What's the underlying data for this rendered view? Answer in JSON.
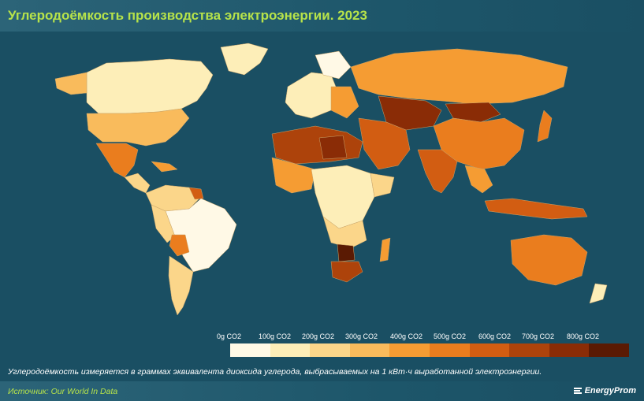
{
  "header": {
    "title": "Углеродоёмкость производства электроэнергии. 2023"
  },
  "legend": {
    "labels": [
      "0g CO2",
      "100g CO2",
      "200g CO2",
      "300g CO2",
      "400g CO2",
      "500g CO2",
      "600g CO2",
      "700g CO2",
      "800g CO2"
    ],
    "colors": [
      "#fff9e6",
      "#fdeeb8",
      "#fbd68a",
      "#f9bb5c",
      "#f59c33",
      "#ea7d1e",
      "#d25d12",
      "#ad430b",
      "#8a2c06",
      "#5a1a03"
    ]
  },
  "map": {
    "ocean_color": "#1a4f63",
    "regions": [
      {
        "name": "North America (Canada)",
        "color": "#fdeeb8"
      },
      {
        "name": "United States",
        "color": "#f9bb5c"
      },
      {
        "name": "Mexico",
        "color": "#ea7d1e"
      },
      {
        "name": "Greenland",
        "color": "#fdeeb8"
      },
      {
        "name": "Brazil",
        "color": "#fff9e6"
      },
      {
        "name": "Bolivia",
        "color": "#ea7d1e"
      },
      {
        "name": "Argentina",
        "color": "#fbd68a"
      },
      {
        "name": "Russia",
        "color": "#f59c33"
      },
      {
        "name": "Kazakhstan",
        "color": "#8a2c06"
      },
      {
        "name": "Mongolia",
        "color": "#8a2c06"
      },
      {
        "name": "China",
        "color": "#ea7d1e"
      },
      {
        "name": "India",
        "color": "#d25d12"
      },
      {
        "name": "Libya",
        "color": "#8a2c06"
      },
      {
        "name": "Egypt / Arabia",
        "color": "#ad430b"
      },
      {
        "name": "South Africa",
        "color": "#ad430b"
      },
      {
        "name": "Botswana",
        "color": "#5a1a03"
      },
      {
        "name": "Central Africa",
        "color": "#fdeeb8"
      },
      {
        "name": "Australia",
        "color": "#ea7d1e"
      },
      {
        "name": "Indonesia",
        "color": "#d25d12"
      },
      {
        "name": "Western Europe",
        "color": "#fdeeb8"
      },
      {
        "name": "Madagascar",
        "color": "#f59c33"
      }
    ]
  },
  "footnote": "Углеродоёмкость измеряется в граммах эквивалента диоксида углерода, выбрасываемых на 1 кВт·ч выработанной электроэнергии.",
  "footer": {
    "source": "Источник: Our World In Data",
    "brand": "EnergyProm"
  }
}
